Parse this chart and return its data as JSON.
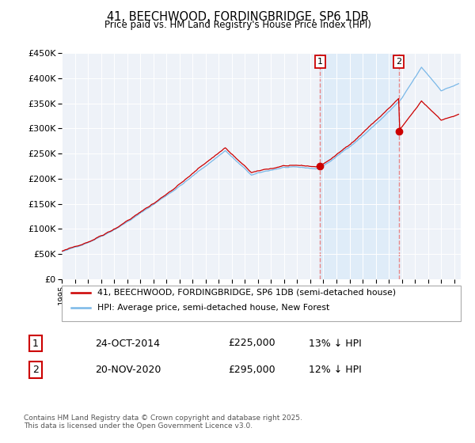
{
  "title1": "41, BEECHWOOD, FORDINGBRIDGE, SP6 1DB",
  "title2": "Price paid vs. HM Land Registry's House Price Index (HPI)",
  "sale1_date": "24-OCT-2014",
  "sale1_price": 225000,
  "sale1_label": "13% ↓ HPI",
  "sale2_date": "20-NOV-2020",
  "sale2_price": 295000,
  "sale2_label": "12% ↓ HPI",
  "legend1": "41, BEECHWOOD, FORDINGBRIDGE, SP6 1DB (semi-detached house)",
  "legend2": "HPI: Average price, semi-detached house, New Forest",
  "footnote": "Contains HM Land Registry data © Crown copyright and database right 2025.\nThis data is licensed under the Open Government Licence v3.0.",
  "hpi_color": "#7ab8e8",
  "price_color": "#cc0000",
  "sale_marker_color": "#cc0000",
  "vline_color": "#e88888",
  "shade_color": "#daeaf8",
  "ylim_min": 0,
  "ylim_max": 450000,
  "ytick_step": 50000,
  "background_color": "#eef2f8",
  "grid_color": "#ffffff"
}
